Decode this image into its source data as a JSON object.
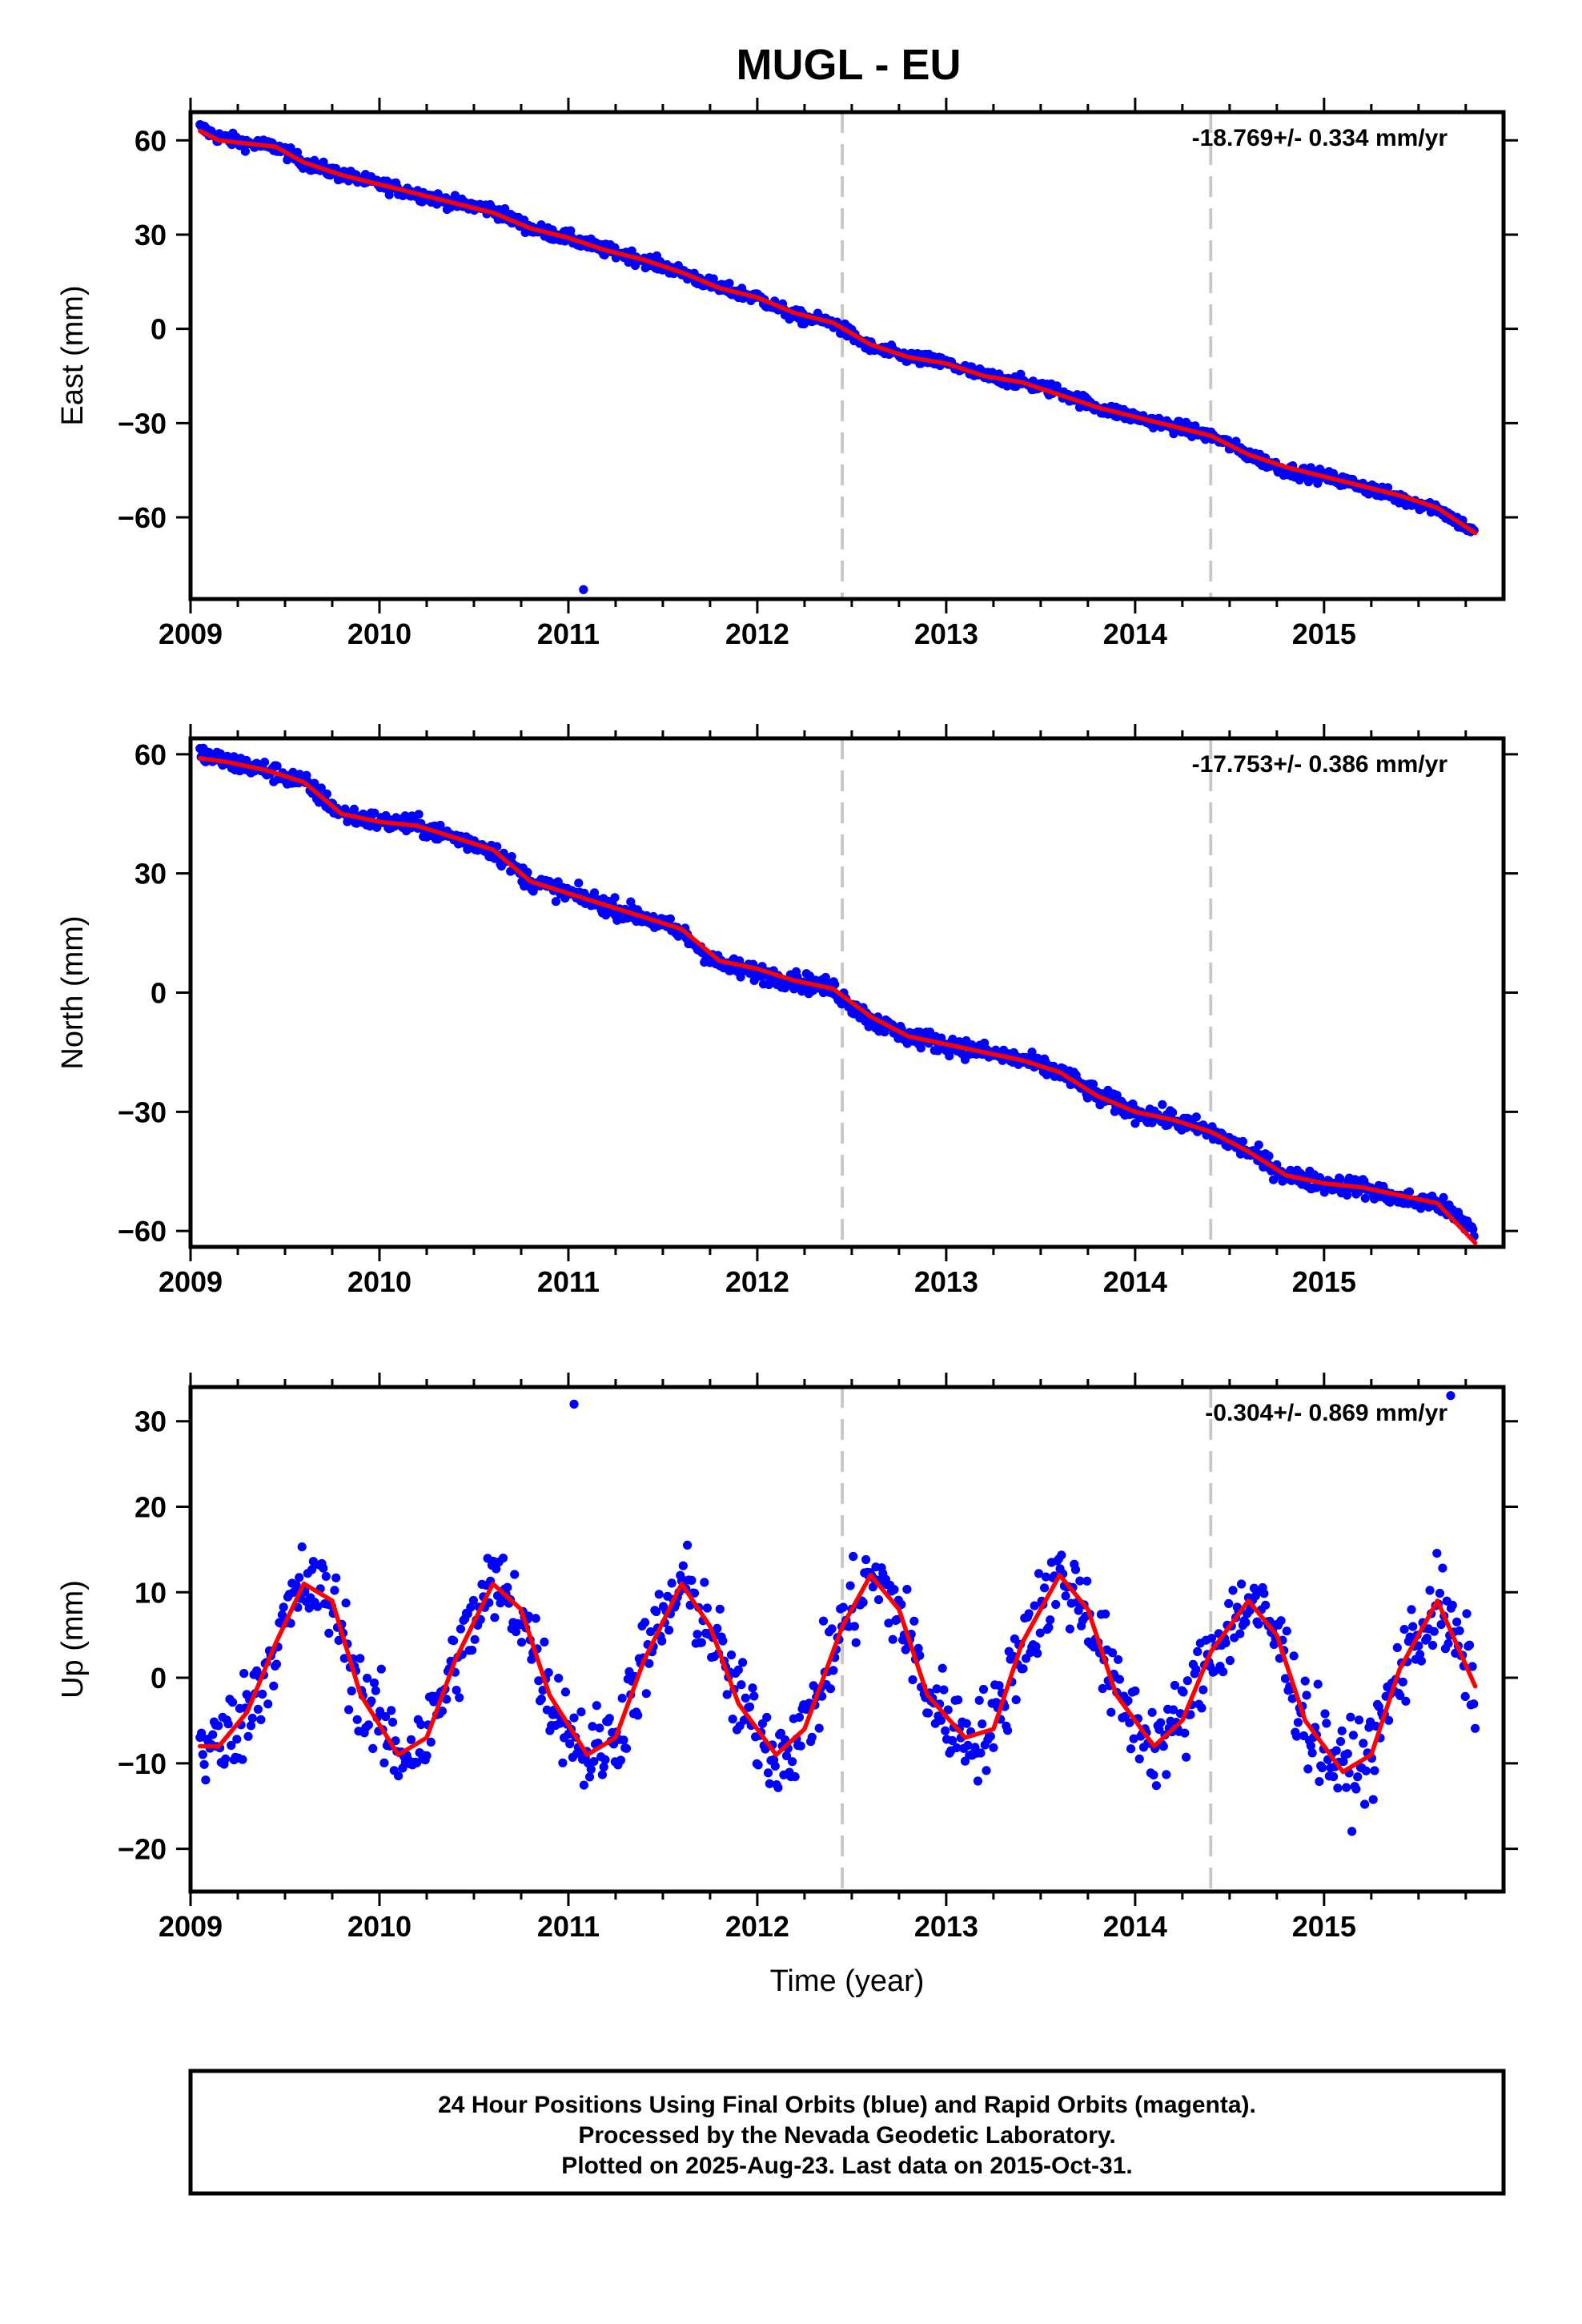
{
  "page": {
    "title": "MUGL - EU",
    "caption_lines": [
      "24 Hour Positions Using Final Orbits (blue) and Rapid Orbits (magenta).",
      "Processed by the Nevada Geodetic Laboratory.",
      "Plotted on 2025-Aug-23. Last data on 2015-Oct-31."
    ]
  },
  "colors": {
    "final_orbits": "#0000ff",
    "model_fit": "#ff0000",
    "event_lines": "#c8c8c8",
    "frame": "#000000"
  },
  "chart_data": [
    {
      "type": "scatter",
      "ylabel": "East (mm)",
      "xlabel": "",
      "xlim": [
        2009.0,
        2015.95
      ],
      "ylim": [
        -86,
        69
      ],
      "xticks": [
        2009,
        2010,
        2011,
        2012,
        2013,
        2014,
        2015
      ],
      "xtick_labels": [
        "2009",
        "2010",
        "2011",
        "2012",
        "2013",
        "2014",
        "2015"
      ],
      "yticks": [
        60,
        30,
        0,
        -30,
        -60
      ],
      "ytick_labels": [
        "60",
        "30",
        "0",
        "−30",
        "−60"
      ],
      "annotation": "-18.769+/- 0.334 mm/yr",
      "event_lines_x": [
        2012.45,
        2014.4
      ],
      "series": [
        {
          "kind": "points",
          "color": "#0000ff",
          "sampled_from_trend": true,
          "x": [
            2009.05,
            2009.15,
            2009.3,
            2009.45,
            2009.6,
            2009.8,
            2010.0,
            2010.2,
            2010.4,
            2010.6,
            2010.8,
            2011.0,
            2011.2,
            2011.4,
            2011.6,
            2011.8,
            2012.0,
            2012.2,
            2012.4,
            2012.6,
            2012.8,
            2013.0,
            2013.2,
            2013.4,
            2013.6,
            2013.8,
            2014.0,
            2014.2,
            2014.4,
            2014.6,
            2014.8,
            2015.0,
            2015.2,
            2015.4,
            2015.6,
            2015.8
          ],
          "y": [
            64,
            61,
            59,
            58,
            53,
            49,
            46,
            43,
            40,
            38,
            32,
            29,
            25,
            22,
            18,
            13,
            10,
            4,
            2,
            -6,
            -9,
            -11,
            -15,
            -17,
            -20,
            -25,
            -28,
            -31,
            -34,
            -40,
            -45,
            -47,
            -50,
            -54,
            -57,
            -65
          ],
          "y_spread": 2.0
        },
        {
          "kind": "line",
          "color": "#ff0000",
          "x": [
            2009.05,
            2009.15,
            2009.3,
            2009.45,
            2009.6,
            2009.8,
            2010.0,
            2010.2,
            2010.4,
            2010.6,
            2010.8,
            2011.0,
            2011.2,
            2011.4,
            2011.6,
            2011.8,
            2012.0,
            2012.2,
            2012.4,
            2012.6,
            2012.8,
            2013.0,
            2013.2,
            2013.4,
            2013.6,
            2013.8,
            2014.0,
            2014.2,
            2014.4,
            2014.6,
            2014.8,
            2015.0,
            2015.2,
            2015.4,
            2015.6,
            2015.8
          ],
          "y": [
            63,
            60,
            59,
            58,
            53,
            49,
            46,
            43,
            40,
            37,
            32,
            29,
            25,
            22,
            18,
            13,
            10,
            5,
            2,
            -5,
            -9,
            -11,
            -15,
            -17,
            -21,
            -25,
            -28,
            -31,
            -34,
            -40,
            -44,
            -47,
            -50,
            -53,
            -57,
            -65
          ]
        }
      ],
      "outliers": [
        {
          "x": 2011.08,
          "y": -83
        }
      ]
    },
    {
      "type": "scatter",
      "ylabel": "North (mm)",
      "xlabel": "",
      "xlim": [
        2009.0,
        2015.95
      ],
      "ylim": [
        -64,
        64
      ],
      "xticks": [
        2009,
        2010,
        2011,
        2012,
        2013,
        2014,
        2015
      ],
      "xtick_labels": [
        "2009",
        "2010",
        "2011",
        "2012",
        "2013",
        "2014",
        "2015"
      ],
      "yticks": [
        60,
        30,
        0,
        -30,
        -60
      ],
      "ytick_labels": [
        "60",
        "30",
        "0",
        "−30",
        "−60"
      ],
      "annotation": "-17.753+/- 0.386 mm/yr",
      "event_lines_x": [
        2012.45,
        2014.4
      ],
      "series": [
        {
          "kind": "points",
          "color": "#0000ff",
          "sampled_from_trend": true,
          "x": [
            2009.05,
            2009.2,
            2009.4,
            2009.6,
            2009.8,
            2010.0,
            2010.2,
            2010.4,
            2010.6,
            2010.8,
            2011.0,
            2011.2,
            2011.4,
            2011.6,
            2011.8,
            2012.0,
            2012.2,
            2012.4,
            2012.6,
            2012.8,
            2013.0,
            2013.2,
            2013.4,
            2013.6,
            2013.8,
            2014.0,
            2014.2,
            2014.4,
            2014.6,
            2014.8,
            2015.0,
            2015.2,
            2015.4,
            2015.6,
            2015.8
          ],
          "y": [
            60,
            58,
            56,
            53,
            45,
            43,
            42,
            39,
            36,
            28,
            25,
            22,
            19,
            15,
            7,
            5,
            3,
            1,
            -7,
            -11,
            -13,
            -15,
            -17,
            -20,
            -26,
            -30,
            -32,
            -35,
            -40,
            -46,
            -48,
            -49,
            -52,
            -53,
            -60
          ],
          "y_spread": 2.3
        },
        {
          "kind": "line",
          "color": "#ff0000",
          "x": [
            2009.05,
            2009.2,
            2009.4,
            2009.6,
            2009.8,
            2010.0,
            2010.2,
            2010.4,
            2010.6,
            2010.8,
            2011.0,
            2011.2,
            2011.4,
            2011.6,
            2011.8,
            2012.0,
            2012.2,
            2012.4,
            2012.6,
            2012.8,
            2013.0,
            2013.2,
            2013.4,
            2013.6,
            2013.8,
            2014.0,
            2014.2,
            2014.4,
            2014.6,
            2014.8,
            2015.0,
            2015.2,
            2015.4,
            2015.6,
            2015.8
          ],
          "y": [
            59,
            58,
            56,
            53,
            45,
            43,
            42,
            39,
            36,
            28,
            25,
            22,
            19,
            16,
            8,
            6,
            3,
            1,
            -6,
            -11,
            -13,
            -15,
            -17,
            -20,
            -26,
            -30,
            -32,
            -35,
            -40,
            -46,
            -48,
            -49,
            -51,
            -53,
            -63
          ]
        }
      ],
      "outliers": []
    },
    {
      "type": "scatter",
      "ylabel": "Up (mm)",
      "xlabel": "Time (year)",
      "xlim": [
        2009.0,
        2015.95
      ],
      "ylim": [
        -25,
        34
      ],
      "xticks": [
        2009,
        2010,
        2011,
        2012,
        2013,
        2014,
        2015
      ],
      "xtick_labels": [
        "2009",
        "2010",
        "2011",
        "2012",
        "2013",
        "2014",
        "2015"
      ],
      "yticks": [
        30,
        20,
        10,
        0,
        -10,
        -20
      ],
      "ytick_labels": [
        "30",
        "20",
        "10",
        "0",
        "−10",
        "−20"
      ],
      "annotation": "-0.304+/- 0.869 mm/yr",
      "event_lines_x": [
        2012.45,
        2014.4
      ],
      "series": [
        {
          "kind": "points",
          "color": "#0000ff",
          "sampled_from_trend": true,
          "x": [
            2009.05,
            2009.15,
            2009.3,
            2009.45,
            2009.6,
            2009.75,
            2009.9,
            2010.1,
            2010.25,
            2010.4,
            2010.6,
            2010.75,
            2010.9,
            2011.1,
            2011.25,
            2011.4,
            2011.6,
            2011.75,
            2011.9,
            2012.1,
            2012.25,
            2012.45,
            2012.6,
            2012.75,
            2012.9,
            2013.1,
            2013.25,
            2013.4,
            2013.6,
            2013.75,
            2013.9,
            2014.1,
            2014.25,
            2014.4,
            2014.6,
            2014.75,
            2014.9,
            2015.1,
            2015.25,
            2015.4,
            2015.6,
            2015.8
          ],
          "y": [
            -8,
            -8,
            -4,
            4,
            11,
            9,
            -2,
            -9,
            -7,
            2,
            11,
            8,
            -2,
            -9,
            -7,
            2,
            11,
            6,
            -3,
            -9,
            -6,
            6,
            12,
            8,
            -2,
            -7,
            -6,
            4,
            12,
            8,
            -2,
            -8,
            -5,
            3,
            9,
            5,
            -5,
            -11,
            -9,
            1,
            9,
            -1
          ],
          "y_spread": 5.0
        },
        {
          "kind": "line",
          "color": "#ff0000",
          "x": [
            2009.05,
            2009.15,
            2009.3,
            2009.45,
            2009.6,
            2009.75,
            2009.9,
            2010.1,
            2010.25,
            2010.4,
            2010.6,
            2010.75,
            2010.9,
            2011.1,
            2011.25,
            2011.4,
            2011.6,
            2011.75,
            2011.9,
            2012.1,
            2012.25,
            2012.45,
            2012.6,
            2012.75,
            2012.9,
            2013.1,
            2013.25,
            2013.4,
            2013.6,
            2013.75,
            2013.9,
            2014.1,
            2014.25,
            2014.4,
            2014.6,
            2014.75,
            2014.9,
            2015.1,
            2015.25,
            2015.4,
            2015.6,
            2015.8
          ],
          "y": [
            -8,
            -8,
            -4,
            4,
            11,
            9,
            -2,
            -9,
            -7,
            2,
            11,
            8,
            -2,
            -9,
            -7,
            2,
            11,
            6,
            -3,
            -9,
            -6,
            6,
            12,
            8,
            -2,
            -7,
            -6,
            4,
            12,
            8,
            -2,
            -8,
            -5,
            3,
            9,
            5,
            -5,
            -11,
            -9,
            1,
            9,
            -1
          ]
        }
      ],
      "outliers": [
        {
          "x": 2011.03,
          "y": 32
        },
        {
          "x": 2015.67,
          "y": 33
        }
      ]
    }
  ]
}
